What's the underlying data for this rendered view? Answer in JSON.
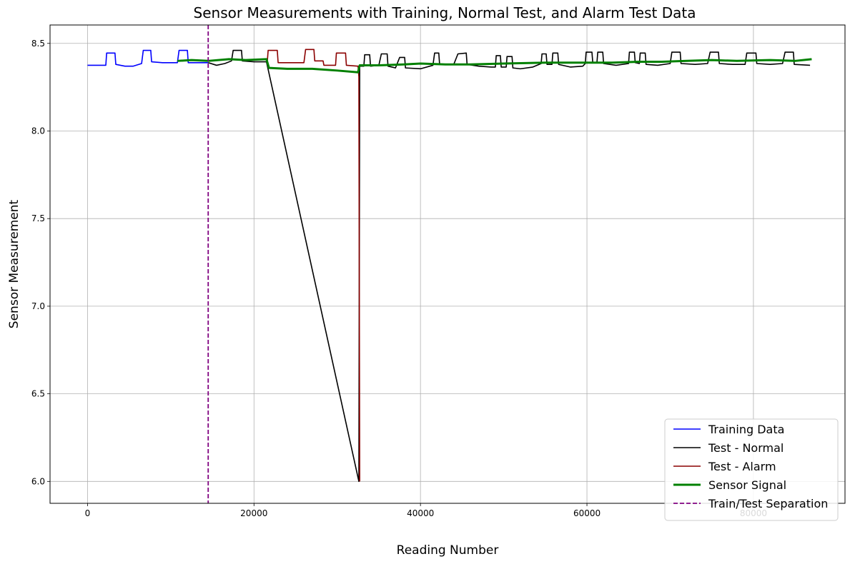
{
  "chart_data": {
    "type": "line",
    "title": "Sensor Measurements with Training, Normal Test, and Alarm Test Data",
    "xlabel": "Reading Number",
    "ylabel": "Sensor Measurement",
    "xlim": [
      -4500,
      91000
    ],
    "ylim": [
      5.875,
      8.605
    ],
    "xticks": [
      0,
      20000,
      40000,
      60000,
      80000
    ],
    "xtick_labels": [
      "0",
      "20000",
      "40000",
      "60000",
      "80000"
    ],
    "yticks": [
      6.0,
      6.5,
      7.0,
      7.5,
      8.0,
      8.5
    ],
    "ytick_labels": [
      "6.0",
      "6.5",
      "7.0",
      "7.5",
      "8.0",
      "8.5"
    ],
    "grid": true,
    "legend_position": "bottom-right",
    "vline": {
      "name": "Train/Test Separation",
      "x": 14500,
      "color": "#800080",
      "style": "dashed"
    },
    "series": [
      {
        "name": "Training Data",
        "color": "#0000ff",
        "style": "solid",
        "points": [
          [
            0,
            8.375
          ],
          [
            2200,
            8.375
          ],
          [
            2300,
            8.445
          ],
          [
            3300,
            8.445
          ],
          [
            3400,
            8.38
          ],
          [
            4500,
            8.37
          ],
          [
            5500,
            8.37
          ],
          [
            6500,
            8.385
          ],
          [
            6700,
            8.46
          ],
          [
            7600,
            8.46
          ],
          [
            7700,
            8.395
          ],
          [
            9000,
            8.39
          ],
          [
            10800,
            8.39
          ],
          [
            11000,
            8.46
          ],
          [
            12000,
            8.46
          ],
          [
            12100,
            8.39
          ],
          [
            14500,
            8.39
          ]
        ]
      },
      {
        "name": "Test - Normal",
        "color": "#000000",
        "style": "solid",
        "points": [
          [
            14500,
            8.39
          ],
          [
            15500,
            8.375
          ],
          [
            16500,
            8.385
          ],
          [
            17300,
            8.4
          ],
          [
            17500,
            8.46
          ],
          [
            18500,
            8.46
          ],
          [
            18600,
            8.4
          ],
          [
            20000,
            8.395
          ],
          [
            21500,
            8.395
          ],
          [
            32600,
            6.0
          ],
          [
            32700,
            8.37
          ],
          [
            32800,
            8.37
          ],
          [
            33200,
            8.37
          ],
          [
            33300,
            8.435
          ],
          [
            33900,
            8.435
          ],
          [
            34000,
            8.37
          ],
          [
            35000,
            8.375
          ],
          [
            35300,
            8.44
          ],
          [
            36000,
            8.44
          ],
          [
            36100,
            8.37
          ],
          [
            37000,
            8.36
          ],
          [
            37500,
            8.42
          ],
          [
            38100,
            8.42
          ],
          [
            38200,
            8.36
          ],
          [
            40000,
            8.355
          ],
          [
            41500,
            8.375
          ],
          [
            41700,
            8.445
          ],
          [
            42200,
            8.445
          ],
          [
            42300,
            8.38
          ],
          [
            44000,
            8.38
          ],
          [
            44500,
            8.44
          ],
          [
            45500,
            8.445
          ],
          [
            45600,
            8.38
          ],
          [
            47000,
            8.37
          ],
          [
            48500,
            8.365
          ],
          [
            49000,
            8.365
          ],
          [
            49100,
            8.43
          ],
          [
            49600,
            8.43
          ],
          [
            49700,
            8.365
          ],
          [
            50300,
            8.365
          ],
          [
            50400,
            8.425
          ],
          [
            51000,
            8.425
          ],
          [
            51100,
            8.36
          ],
          [
            52000,
            8.355
          ],
          [
            53500,
            8.365
          ],
          [
            54500,
            8.385
          ],
          [
            54600,
            8.44
          ],
          [
            55100,
            8.44
          ],
          [
            55200,
            8.38
          ],
          [
            55800,
            8.38
          ],
          [
            55900,
            8.445
          ],
          [
            56500,
            8.445
          ],
          [
            56600,
            8.38
          ],
          [
            58000,
            8.365
          ],
          [
            59500,
            8.37
          ],
          [
            59800,
            8.385
          ],
          [
            59900,
            8.45
          ],
          [
            60600,
            8.45
          ],
          [
            60700,
            8.39
          ],
          [
            61200,
            8.39
          ],
          [
            61300,
            8.45
          ],
          [
            61900,
            8.45
          ],
          [
            62000,
            8.385
          ],
          [
            63500,
            8.375
          ],
          [
            65000,
            8.385
          ],
          [
            65100,
            8.45
          ],
          [
            65700,
            8.45
          ],
          [
            65800,
            8.39
          ],
          [
            66300,
            8.385
          ],
          [
            66400,
            8.445
          ],
          [
            67000,
            8.445
          ],
          [
            67100,
            8.38
          ],
          [
            68500,
            8.375
          ],
          [
            70000,
            8.385
          ],
          [
            70200,
            8.45
          ],
          [
            71200,
            8.45
          ],
          [
            71300,
            8.385
          ],
          [
            73000,
            8.38
          ],
          [
            74500,
            8.385
          ],
          [
            74800,
            8.45
          ],
          [
            75800,
            8.45
          ],
          [
            75900,
            8.385
          ],
          [
            77500,
            8.38
          ],
          [
            79000,
            8.38
          ],
          [
            79200,
            8.445
          ],
          [
            80300,
            8.445
          ],
          [
            80400,
            8.385
          ],
          [
            82000,
            8.38
          ],
          [
            83500,
            8.385
          ],
          [
            83800,
            8.45
          ],
          [
            84800,
            8.45
          ],
          [
            84900,
            8.38
          ],
          [
            86800,
            8.375
          ]
        ]
      },
      {
        "name": "Test - Alarm",
        "color": "#8b0000",
        "style": "solid",
        "points": [
          [
            21600,
            8.395
          ],
          [
            21700,
            8.46
          ],
          [
            22800,
            8.46
          ],
          [
            22900,
            8.39
          ],
          [
            24500,
            8.39
          ],
          [
            26000,
            8.39
          ],
          [
            26200,
            8.465
          ],
          [
            27200,
            8.465
          ],
          [
            27300,
            8.4
          ],
          [
            28300,
            8.4
          ],
          [
            28400,
            8.375
          ],
          [
            29800,
            8.375
          ],
          [
            29900,
            8.445
          ],
          [
            31000,
            8.445
          ],
          [
            31100,
            8.375
          ],
          [
            32500,
            8.37
          ],
          [
            32600,
            8.31
          ],
          [
            32700,
            6.0
          ]
        ]
      },
      {
        "name": "Sensor Signal",
        "color": "#008000",
        "style": "thick",
        "points": [
          [
            10800,
            8.4
          ],
          [
            12500,
            8.405
          ],
          [
            14500,
            8.4
          ],
          [
            17000,
            8.41
          ],
          [
            19000,
            8.405
          ],
          [
            21500,
            8.41
          ],
          [
            21800,
            8.36
          ],
          [
            24000,
            8.355
          ],
          [
            27000,
            8.355
          ],
          [
            30000,
            8.345
          ],
          [
            32500,
            8.335
          ],
          [
            32700,
            8.375
          ],
          [
            35000,
            8.375
          ],
          [
            38000,
            8.38
          ],
          [
            40000,
            8.385
          ],
          [
            43000,
            8.38
          ],
          [
            46000,
            8.38
          ],
          [
            50000,
            8.385
          ],
          [
            55000,
            8.39
          ],
          [
            60000,
            8.39
          ],
          [
            63000,
            8.39
          ],
          [
            66000,
            8.395
          ],
          [
            69000,
            8.395
          ],
          [
            72000,
            8.4
          ],
          [
            75000,
            8.405
          ],
          [
            78000,
            8.4
          ],
          [
            82000,
            8.405
          ],
          [
            85000,
            8.4
          ],
          [
            87000,
            8.41
          ]
        ]
      }
    ]
  }
}
